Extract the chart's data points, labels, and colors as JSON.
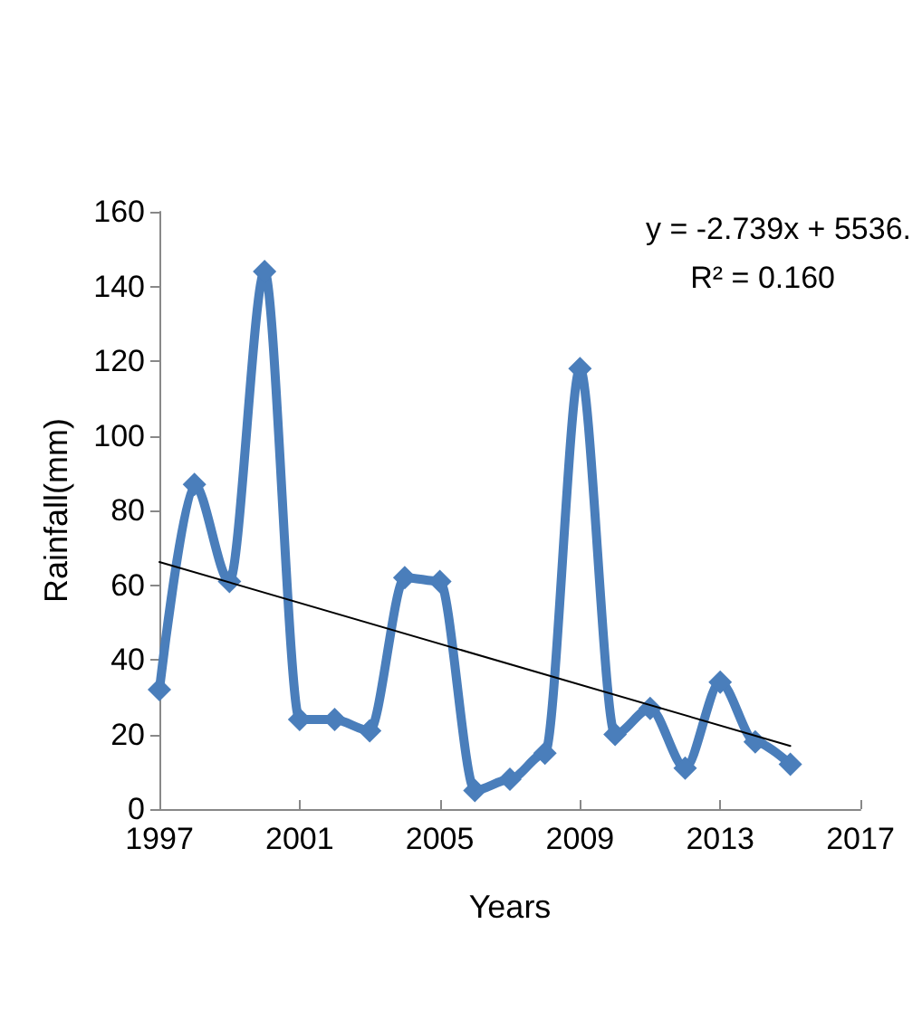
{
  "chart_data": {
    "type": "line",
    "xlabel": "Years",
    "ylabel": "Rainfall(mm)",
    "x": [
      1997,
      1998,
      1999,
      2000,
      2001,
      2002,
      2003,
      2004,
      2005,
      2006,
      2007,
      2008,
      2009,
      2010,
      2011,
      2012,
      2013,
      2014,
      2015
    ],
    "series": [
      {
        "color": "#4a7ebb",
        "marker": "diamond",
        "values": [
          32,
          87,
          61,
          144,
          24,
          24,
          21,
          62,
          61,
          5,
          8,
          15,
          118,
          20,
          27,
          11,
          34,
          18,
          12
        ]
      },
      {
        "type": "line",
        "color": "#000000",
        "marker": "none",
        "x": [
          1997,
          2015
        ],
        "values": [
          66.2,
          16.9
        ]
      }
    ],
    "annotations": [
      "y = -2.739x + 5536.",
      "R² = 0.160"
    ],
    "xlim": [
      1997,
      2017
    ],
    "xticks": [
      1997,
      2001,
      2005,
      2009,
      2013,
      2017
    ],
    "ylim": [
      0,
      160
    ],
    "yticks": [
      0,
      20,
      40,
      60,
      80,
      100,
      120,
      140,
      160
    ],
    "grid": false
  }
}
